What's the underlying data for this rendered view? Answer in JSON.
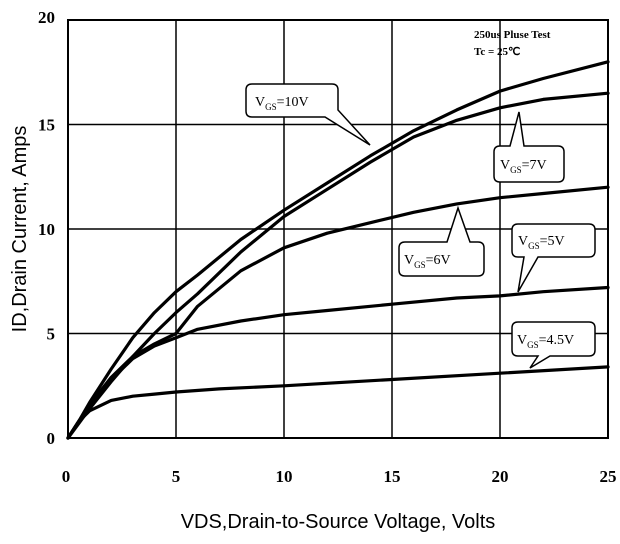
{
  "chart_data": {
    "type": "line",
    "xlabel": "VDS,Drain-to-Source Voltage, Volts",
    "ylabel": "ID,Drain Current, Amps",
    "xlim": [
      0,
      25
    ],
    "ylim": [
      0,
      20
    ],
    "xticks": [
      "0",
      "5",
      "10",
      "15",
      "20",
      "25"
    ],
    "yticks": [
      "0",
      "5",
      "10",
      "15",
      "20"
    ],
    "grid": true,
    "annotations": [
      "250us Pluse Test",
      "Tc = 25℃"
    ],
    "series": [
      {
        "name": "VGS=10V",
        "x": [
          0,
          0.5,
          1,
          2,
          3,
          4,
          5,
          6,
          8,
          10,
          12,
          14,
          16,
          18,
          20,
          22,
          25
        ],
        "y": [
          0,
          0.8,
          1.7,
          3.3,
          4.8,
          6.0,
          7.0,
          7.8,
          9.5,
          10.9,
          12.2,
          13.5,
          14.7,
          15.7,
          16.6,
          17.2,
          18.0
        ]
      },
      {
        "name": "VGS=7V",
        "x": [
          0,
          0.5,
          1,
          2,
          3,
          4,
          5,
          6,
          8,
          10,
          12,
          14,
          16,
          18,
          20,
          22,
          25
        ],
        "y": [
          0,
          0.7,
          1.4,
          2.7,
          3.9,
          5.0,
          6.0,
          6.9,
          8.9,
          10.6,
          11.9,
          13.2,
          14.4,
          15.2,
          15.8,
          16.2,
          16.5
        ]
      },
      {
        "name": "VGS=6V",
        "x": [
          0,
          0.5,
          1,
          2,
          3,
          4,
          5,
          6,
          8,
          10,
          12,
          14,
          16,
          18,
          20,
          22,
          25
        ],
        "y": [
          0,
          0.8,
          1.6,
          2.9,
          3.9,
          4.5,
          5.0,
          6.3,
          8.0,
          9.1,
          9.8,
          10.3,
          10.8,
          11.2,
          11.5,
          11.7,
          12.0
        ]
      },
      {
        "name": "VGS=5V",
        "x": [
          0,
          0.5,
          1,
          2,
          3,
          4,
          5,
          6,
          8,
          10,
          12,
          15,
          18,
          20,
          22,
          25
        ],
        "y": [
          0,
          0.8,
          1.5,
          2.8,
          3.8,
          4.4,
          4.8,
          5.2,
          5.6,
          5.9,
          6.1,
          6.4,
          6.7,
          6.8,
          7.0,
          7.2
        ]
      },
      {
        "name": "VGS=4.5V",
        "x": [
          0,
          0.5,
          1,
          2,
          3,
          4,
          5,
          7,
          10,
          15,
          20,
          25
        ],
        "y": [
          0,
          0.8,
          1.3,
          1.8,
          2.0,
          2.1,
          2.2,
          2.35,
          2.5,
          2.8,
          3.1,
          3.4
        ]
      }
    ]
  },
  "callouts": [
    {
      "main": "V",
      "sub": "GS",
      "value": "=10V"
    },
    {
      "main": "V",
      "sub": "GS",
      "value": "=7V"
    },
    {
      "main": "V",
      "sub": "GS",
      "value": "=6V"
    },
    {
      "main": "V",
      "sub": "GS",
      "value": "=5V"
    },
    {
      "main": "V",
      "sub": "GS",
      "value": "=4.5V"
    }
  ]
}
